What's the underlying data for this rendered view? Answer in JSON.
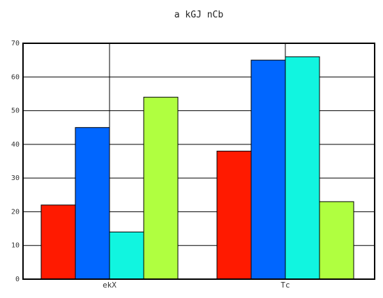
{
  "chart_data": {
    "type": "bar",
    "title": "a kGJ nCb",
    "xlabel": "",
    "ylabel": "",
    "categories": [
      "ekX",
      "Tc"
    ],
    "series": [
      {
        "color": "#ff1a00",
        "values": [
          22,
          38
        ]
      },
      {
        "color": "#0066ff",
        "values": [
          45,
          65
        ]
      },
      {
        "color": "#11f5e0",
        "values": [
          14,
          66
        ]
      },
      {
        "color": "#b0ff40",
        "values": [
          54,
          23
        ]
      }
    ],
    "ylim": [
      0,
      70
    ],
    "yticks": [
      0,
      10,
      20,
      30,
      40,
      50,
      60,
      70
    ],
    "grid": true,
    "legend": "none"
  }
}
